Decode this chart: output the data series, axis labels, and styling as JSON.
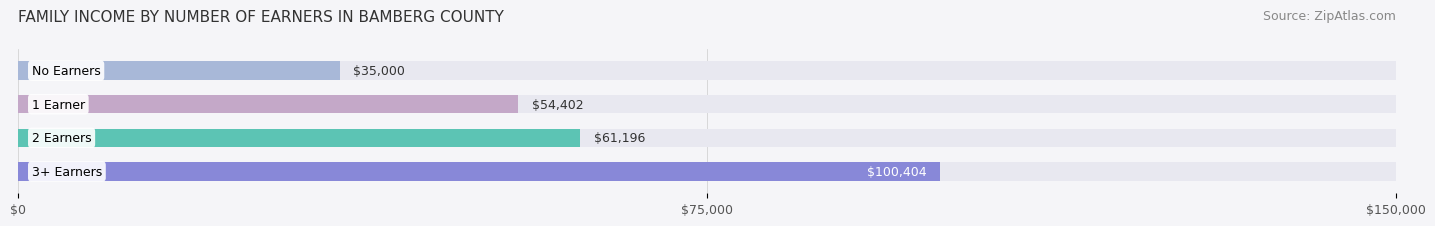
{
  "title": "FAMILY INCOME BY NUMBER OF EARNERS IN BAMBERG COUNTY",
  "source": "Source: ZipAtlas.com",
  "categories": [
    "No Earners",
    "1 Earner",
    "2 Earners",
    "3+ Earners"
  ],
  "values": [
    35000,
    54402,
    61196,
    100404
  ],
  "labels": [
    "$35,000",
    "$54,402",
    "$61,196",
    "$100,404"
  ],
  "bar_colors": [
    "#a8b8d8",
    "#c4a8c8",
    "#5cc4b4",
    "#8888d8"
  ],
  "bar_bg_color": "#e8e8f0",
  "xlim": [
    0,
    150000
  ],
  "xticks": [
    0,
    75000,
    150000
  ],
  "xticklabels": [
    "$0",
    "$75,000",
    "$150,000"
  ],
  "title_fontsize": 11,
  "source_fontsize": 9,
  "label_fontsize": 9,
  "tick_fontsize": 9,
  "background_color": "#f5f5f8",
  "bar_height": 0.55,
  "bar_label_color_threshold": 90000
}
